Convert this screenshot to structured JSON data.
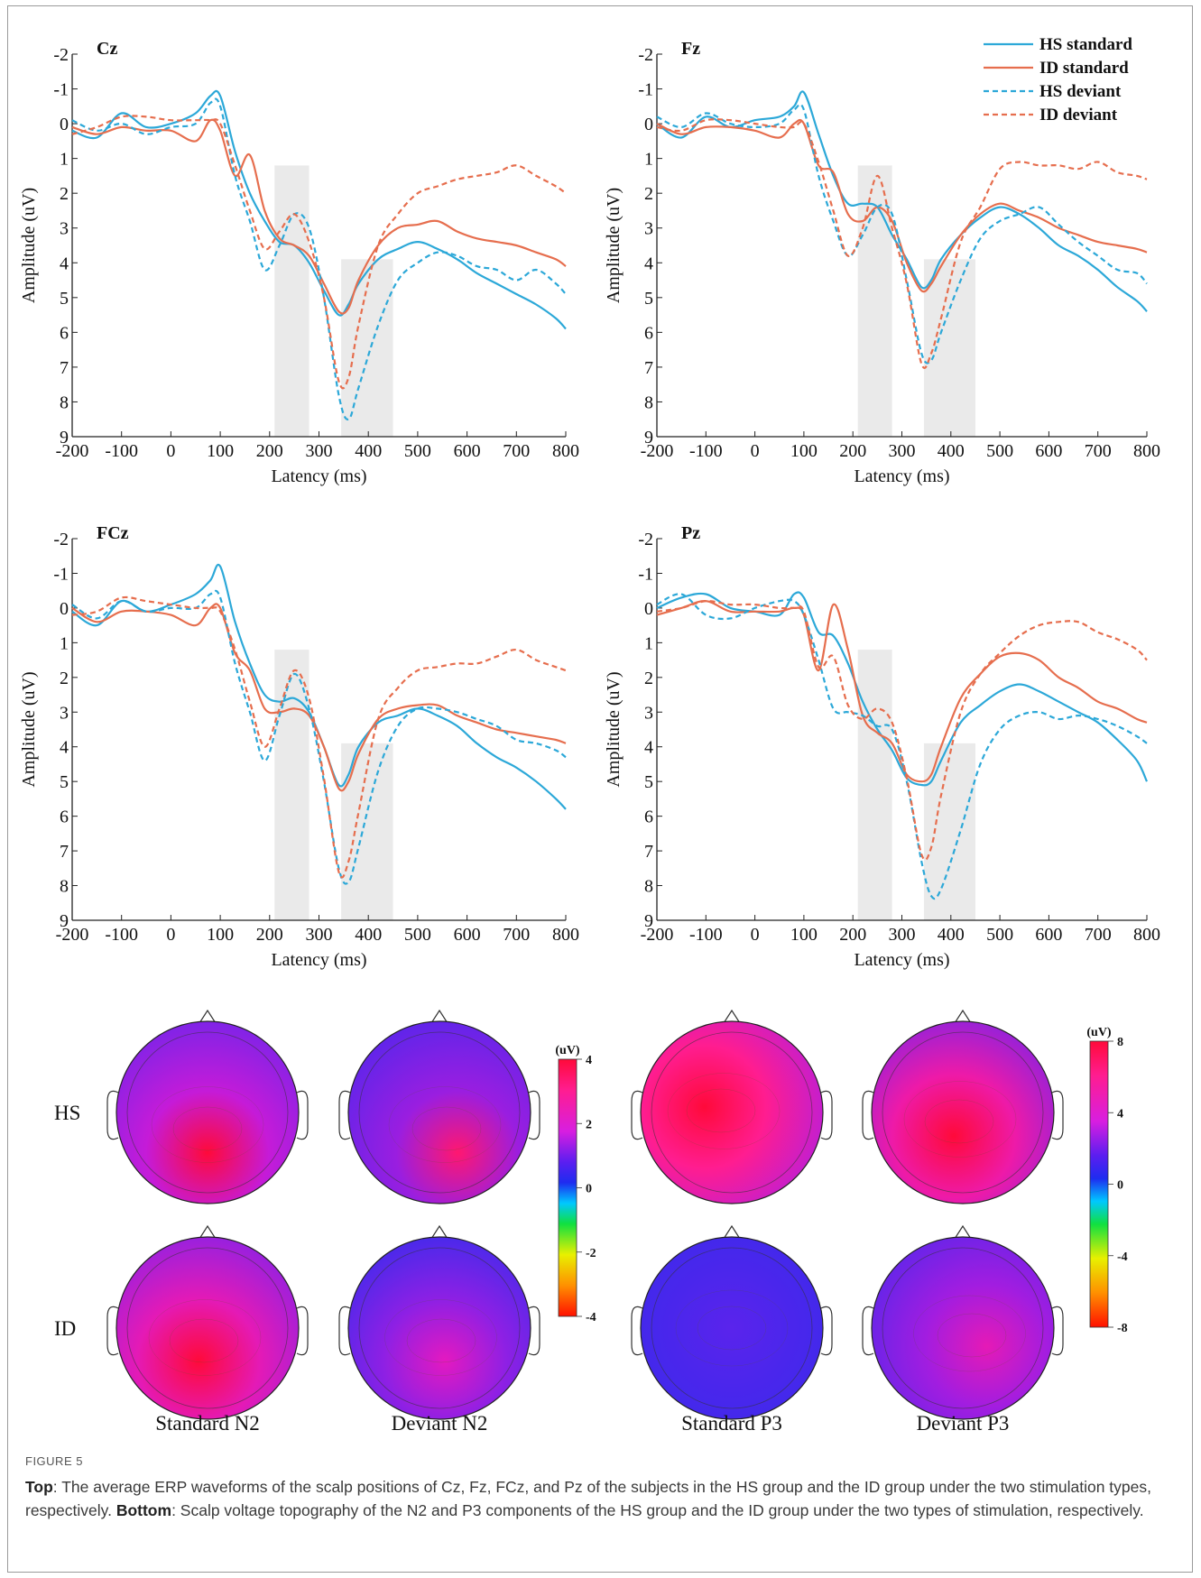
{
  "chart_data": [
    {
      "type": "line",
      "panel_label": "Cz",
      "xlabel": "Latency (ms)",
      "ylabel": "Amplitude (uV)",
      "xlim": [
        -200,
        800
      ],
      "ylim": [
        -2,
        9
      ],
      "y_inverted": true,
      "x_ticks": [
        -200,
        -100,
        0,
        100,
        200,
        300,
        400,
        500,
        600,
        700,
        800
      ],
      "y_ticks": [
        -2,
        -1,
        0,
        1,
        2,
        3,
        4,
        5,
        6,
        7,
        8,
        9
      ],
      "shaded_windows": [
        [
          210,
          280
        ],
        [
          345,
          450
        ]
      ],
      "x": [
        -200,
        -150,
        -100,
        -50,
        0,
        50,
        80,
        100,
        130,
        160,
        190,
        220,
        250,
        280,
        310,
        340,
        360,
        380,
        420,
        460,
        500,
        540,
        580,
        620,
        660,
        700,
        740,
        780,
        800
      ],
      "series": [
        {
          "values": [
            0.2,
            0.4,
            -0.3,
            0.1,
            0.0,
            -0.3,
            -0.8,
            -0.8,
            0.8,
            2.0,
            2.8,
            3.4,
            3.5,
            4.0,
            4.8,
            5.5,
            5.2,
            4.6,
            3.9,
            3.6,
            3.4,
            3.6,
            3.9,
            4.3,
            4.6,
            4.9,
            5.2,
            5.6,
            5.9
          ]
        },
        {
          "values": [
            0.1,
            0.3,
            0.1,
            0.2,
            0.2,
            0.5,
            -0.1,
            0.2,
            1.5,
            0.9,
            2.5,
            3.3,
            3.5,
            3.8,
            4.6,
            5.4,
            5.3,
            4.5,
            3.5,
            3.0,
            2.9,
            2.8,
            3.1,
            3.3,
            3.4,
            3.5,
            3.7,
            3.9,
            4.1
          ]
        },
        {
          "values": [
            -0.1,
            0.2,
            0.0,
            0.3,
            0.1,
            0.0,
            -0.6,
            -0.5,
            1.5,
            2.8,
            4.2,
            3.5,
            2.6,
            3.0,
            5.0,
            7.8,
            8.5,
            7.6,
            5.8,
            4.5,
            4.0,
            3.7,
            3.8,
            4.1,
            4.2,
            4.5,
            4.2,
            4.6,
            4.9
          ]
        },
        {
          "values": [
            0.3,
            0.1,
            -0.2,
            -0.2,
            -0.1,
            -0.1,
            -0.1,
            0.0,
            1.2,
            2.5,
            3.6,
            3.1,
            2.6,
            3.4,
            5.0,
            7.4,
            7.3,
            5.8,
            3.5,
            2.6,
            2.0,
            1.8,
            1.6,
            1.5,
            1.4,
            1.2,
            1.5,
            1.8,
            2.0
          ]
        }
      ]
    },
    {
      "type": "line",
      "panel_label": "Fz",
      "xlabel": "Latency (ms)",
      "ylabel": "Amplitude (uV)",
      "xlim": [
        -200,
        800
      ],
      "ylim": [
        -2,
        9
      ],
      "y_inverted": true,
      "x_ticks": [
        -200,
        -100,
        0,
        100,
        200,
        300,
        400,
        500,
        600,
        700,
        800
      ],
      "y_ticks": [
        -2,
        -1,
        0,
        1,
        2,
        3,
        4,
        5,
        6,
        7,
        8,
        9
      ],
      "shaded_windows": [
        [
          210,
          280
        ],
        [
          345,
          450
        ]
      ],
      "x": [
        -200,
        -150,
        -100,
        -50,
        0,
        50,
        80,
        100,
        130,
        160,
        190,
        220,
        250,
        280,
        310,
        340,
        360,
        380,
        420,
        460,
        500,
        540,
        580,
        620,
        660,
        700,
        740,
        780,
        800
      ],
      "series": [
        {
          "values": [
            0.0,
            0.4,
            -0.2,
            0.1,
            -0.1,
            -0.2,
            -0.5,
            -0.9,
            0.3,
            1.5,
            2.3,
            2.3,
            2.4,
            3.2,
            3.9,
            4.7,
            4.5,
            3.9,
            3.2,
            2.7,
            2.4,
            2.6,
            3.0,
            3.5,
            3.8,
            4.2,
            4.7,
            5.1,
            5.4
          ]
        },
        {
          "values": [
            0.0,
            0.3,
            0.1,
            0.1,
            0.2,
            0.4,
            0.0,
            0.0,
            1.2,
            1.4,
            2.6,
            2.8,
            2.4,
            2.8,
            4.0,
            4.8,
            4.6,
            4.1,
            3.2,
            2.6,
            2.3,
            2.5,
            2.7,
            3.0,
            3.2,
            3.4,
            3.5,
            3.6,
            3.7
          ]
        },
        {
          "values": [
            -0.2,
            0.1,
            -0.3,
            0.0,
            0.1,
            0.0,
            -0.4,
            -0.4,
            1.5,
            2.8,
            3.8,
            3.2,
            2.4,
            2.6,
            4.5,
            6.6,
            6.8,
            6.0,
            4.5,
            3.3,
            2.8,
            2.6,
            2.4,
            2.9,
            3.4,
            3.8,
            4.2,
            4.3,
            4.6
          ]
        },
        {
          "values": [
            0.1,
            0.2,
            -0.1,
            -0.1,
            0.0,
            0.1,
            0.1,
            0.0,
            1.1,
            2.5,
            3.8,
            3.0,
            1.5,
            3.0,
            4.6,
            6.9,
            6.6,
            5.6,
            3.4,
            2.4,
            1.3,
            1.1,
            1.2,
            1.2,
            1.3,
            1.1,
            1.4,
            1.5,
            1.6
          ]
        }
      ]
    },
    {
      "type": "line",
      "panel_label": "FCz",
      "xlabel": "Latency (ms)",
      "ylabel": "Amplitude (uV)",
      "xlim": [
        -200,
        800
      ],
      "ylim": [
        -2,
        9
      ],
      "y_inverted": true,
      "x_ticks": [
        -200,
        -100,
        0,
        100,
        200,
        300,
        400,
        500,
        600,
        700,
        800
      ],
      "y_ticks": [
        -2,
        -1,
        0,
        1,
        2,
        3,
        4,
        5,
        6,
        7,
        8,
        9
      ],
      "shaded_windows": [
        [
          210,
          280
        ],
        [
          345,
          450
        ]
      ],
      "x": [
        -200,
        -150,
        -100,
        -50,
        0,
        50,
        80,
        100,
        130,
        160,
        190,
        220,
        250,
        280,
        310,
        340,
        360,
        380,
        420,
        460,
        500,
        540,
        580,
        620,
        660,
        700,
        740,
        780,
        800
      ],
      "series": [
        {
          "values": [
            0.1,
            0.5,
            -0.2,
            0.1,
            -0.1,
            -0.4,
            -0.8,
            -1.2,
            0.4,
            1.6,
            2.5,
            2.7,
            2.6,
            3.0,
            4.0,
            5.1,
            4.8,
            4.0,
            3.3,
            3.1,
            2.9,
            3.1,
            3.4,
            3.9,
            4.3,
            4.6,
            5.0,
            5.5,
            5.8
          ]
        },
        {
          "values": [
            0.0,
            0.4,
            0.1,
            0.1,
            0.2,
            0.5,
            0.0,
            0.0,
            1.3,
            1.8,
            2.9,
            3.0,
            2.9,
            3.1,
            4.0,
            5.2,
            5.0,
            4.2,
            3.2,
            2.9,
            2.8,
            2.8,
            3.1,
            3.3,
            3.5,
            3.6,
            3.7,
            3.8,
            3.9
          ]
        },
        {
          "values": [
            -0.1,
            0.3,
            -0.2,
            0.1,
            0.0,
            0.0,
            -0.4,
            -0.3,
            1.6,
            3.0,
            4.4,
            3.1,
            1.9,
            2.9,
            5.0,
            7.5,
            7.9,
            6.9,
            4.7,
            3.4,
            2.9,
            2.9,
            3.0,
            3.2,
            3.4,
            3.8,
            3.9,
            4.1,
            4.3
          ]
        },
        {
          "values": [
            0.2,
            0.1,
            -0.3,
            -0.2,
            -0.1,
            0.0,
            0.0,
            0.1,
            1.2,
            2.7,
            4.0,
            2.9,
            1.8,
            2.6,
            4.9,
            7.6,
            7.3,
            5.9,
            3.2,
            2.3,
            1.8,
            1.7,
            1.6,
            1.6,
            1.4,
            1.2,
            1.5,
            1.7,
            1.8
          ]
        }
      ]
    },
    {
      "type": "line",
      "panel_label": "Pz",
      "xlabel": "Latency (ms)",
      "ylabel": "Amplitude (uV)",
      "xlim": [
        -200,
        800
      ],
      "ylim": [
        -2,
        9
      ],
      "y_inverted": true,
      "x_ticks": [
        -200,
        -100,
        0,
        100,
        200,
        300,
        400,
        500,
        600,
        700,
        800
      ],
      "y_ticks": [
        -2,
        -1,
        0,
        1,
        2,
        3,
        4,
        5,
        6,
        7,
        8,
        9
      ],
      "shaded_windows": [
        [
          210,
          280
        ],
        [
          345,
          450
        ]
      ],
      "x": [
        -200,
        -150,
        -100,
        -50,
        0,
        50,
        80,
        100,
        130,
        160,
        190,
        220,
        250,
        280,
        310,
        340,
        360,
        380,
        420,
        460,
        500,
        540,
        580,
        620,
        660,
        700,
        740,
        780,
        800
      ],
      "series": [
        {
          "values": [
            0.0,
            -0.3,
            -0.4,
            0.0,
            0.1,
            0.2,
            -0.4,
            -0.3,
            0.7,
            0.8,
            1.6,
            2.7,
            3.5,
            4.1,
            4.9,
            5.1,
            5.0,
            4.4,
            3.3,
            2.8,
            2.4,
            2.2,
            2.4,
            2.7,
            3.0,
            3.3,
            3.8,
            4.4,
            5.0
          ]
        },
        {
          "values": [
            0.2,
            0.0,
            -0.2,
            0.1,
            0.1,
            0.1,
            0.0,
            0.2,
            1.8,
            -0.1,
            1.2,
            3.1,
            3.6,
            3.9,
            4.8,
            5.0,
            4.8,
            4.0,
            2.6,
            1.9,
            1.4,
            1.3,
            1.5,
            2.0,
            2.3,
            2.7,
            2.9,
            3.2,
            3.3
          ]
        },
        {
          "values": [
            -0.1,
            -0.4,
            0.2,
            0.3,
            0.0,
            -0.2,
            -0.2,
            0.2,
            1.5,
            2.9,
            3.0,
            3.1,
            3.4,
            3.5,
            5.0,
            7.3,
            8.3,
            8.1,
            6.4,
            4.5,
            3.5,
            3.1,
            3.0,
            3.2,
            3.1,
            3.2,
            3.4,
            3.7,
            3.9
          ]
        },
        {
          "values": [
            0.1,
            0.0,
            -0.2,
            -0.1,
            -0.1,
            0.0,
            0.0,
            0.1,
            1.7,
            1.4,
            2.8,
            3.2,
            2.9,
            3.3,
            4.9,
            7.1,
            6.9,
            5.4,
            3.0,
            1.9,
            1.3,
            0.8,
            0.5,
            0.4,
            0.4,
            0.7,
            0.9,
            1.2,
            1.5
          ]
        }
      ]
    }
  ],
  "legend": [
    {
      "label": "HS standard",
      "color": "#2ca8d8",
      "style": "solid"
    },
    {
      "label": "ID standard",
      "color": "#e66e4e",
      "style": "solid"
    },
    {
      "label": "HS deviant",
      "color": "#2ca8d8",
      "style": "dashed"
    },
    {
      "label": "ID deviant",
      "color": "#e66e4e",
      "style": "dashed"
    }
  ],
  "topography": {
    "row_labels": [
      "HS",
      "ID"
    ],
    "column_labels": [
      "Standard N2",
      "Deviant N2",
      "Standard P3",
      "Deviant P3"
    ],
    "colorbar_n2": {
      "unit": "(uV)",
      "ticks": [
        "4",
        "2",
        "0",
        "-2",
        "-4"
      ]
    },
    "colorbar_p3": {
      "unit": "(uV)",
      "ticks": [
        "8",
        "4",
        "0",
        "-4",
        "-8"
      ]
    },
    "colormap": [
      "#ff0a3a",
      "#ff1d90",
      "#d81ee0",
      "#5b1ef0",
      "#1e2cf0",
      "#00c8ff",
      "#10e040",
      "#e8f000",
      "#ff9000",
      "#ff1000"
    ]
  },
  "caption": {
    "label": "FIGURE 5",
    "top_bold": "Top",
    "top_text": ": The average ERP waveforms of the scalp positions of Cz, Fz, FCz, and Pz of the subjects in the HS group and the ID group under the two stimulation types, respectively. ",
    "bottom_bold": "Bottom",
    "bottom_text": ": Scalp voltage topography of the N2 and P3 components of the HS group and the ID group under the two types of stimulation, respectively."
  }
}
